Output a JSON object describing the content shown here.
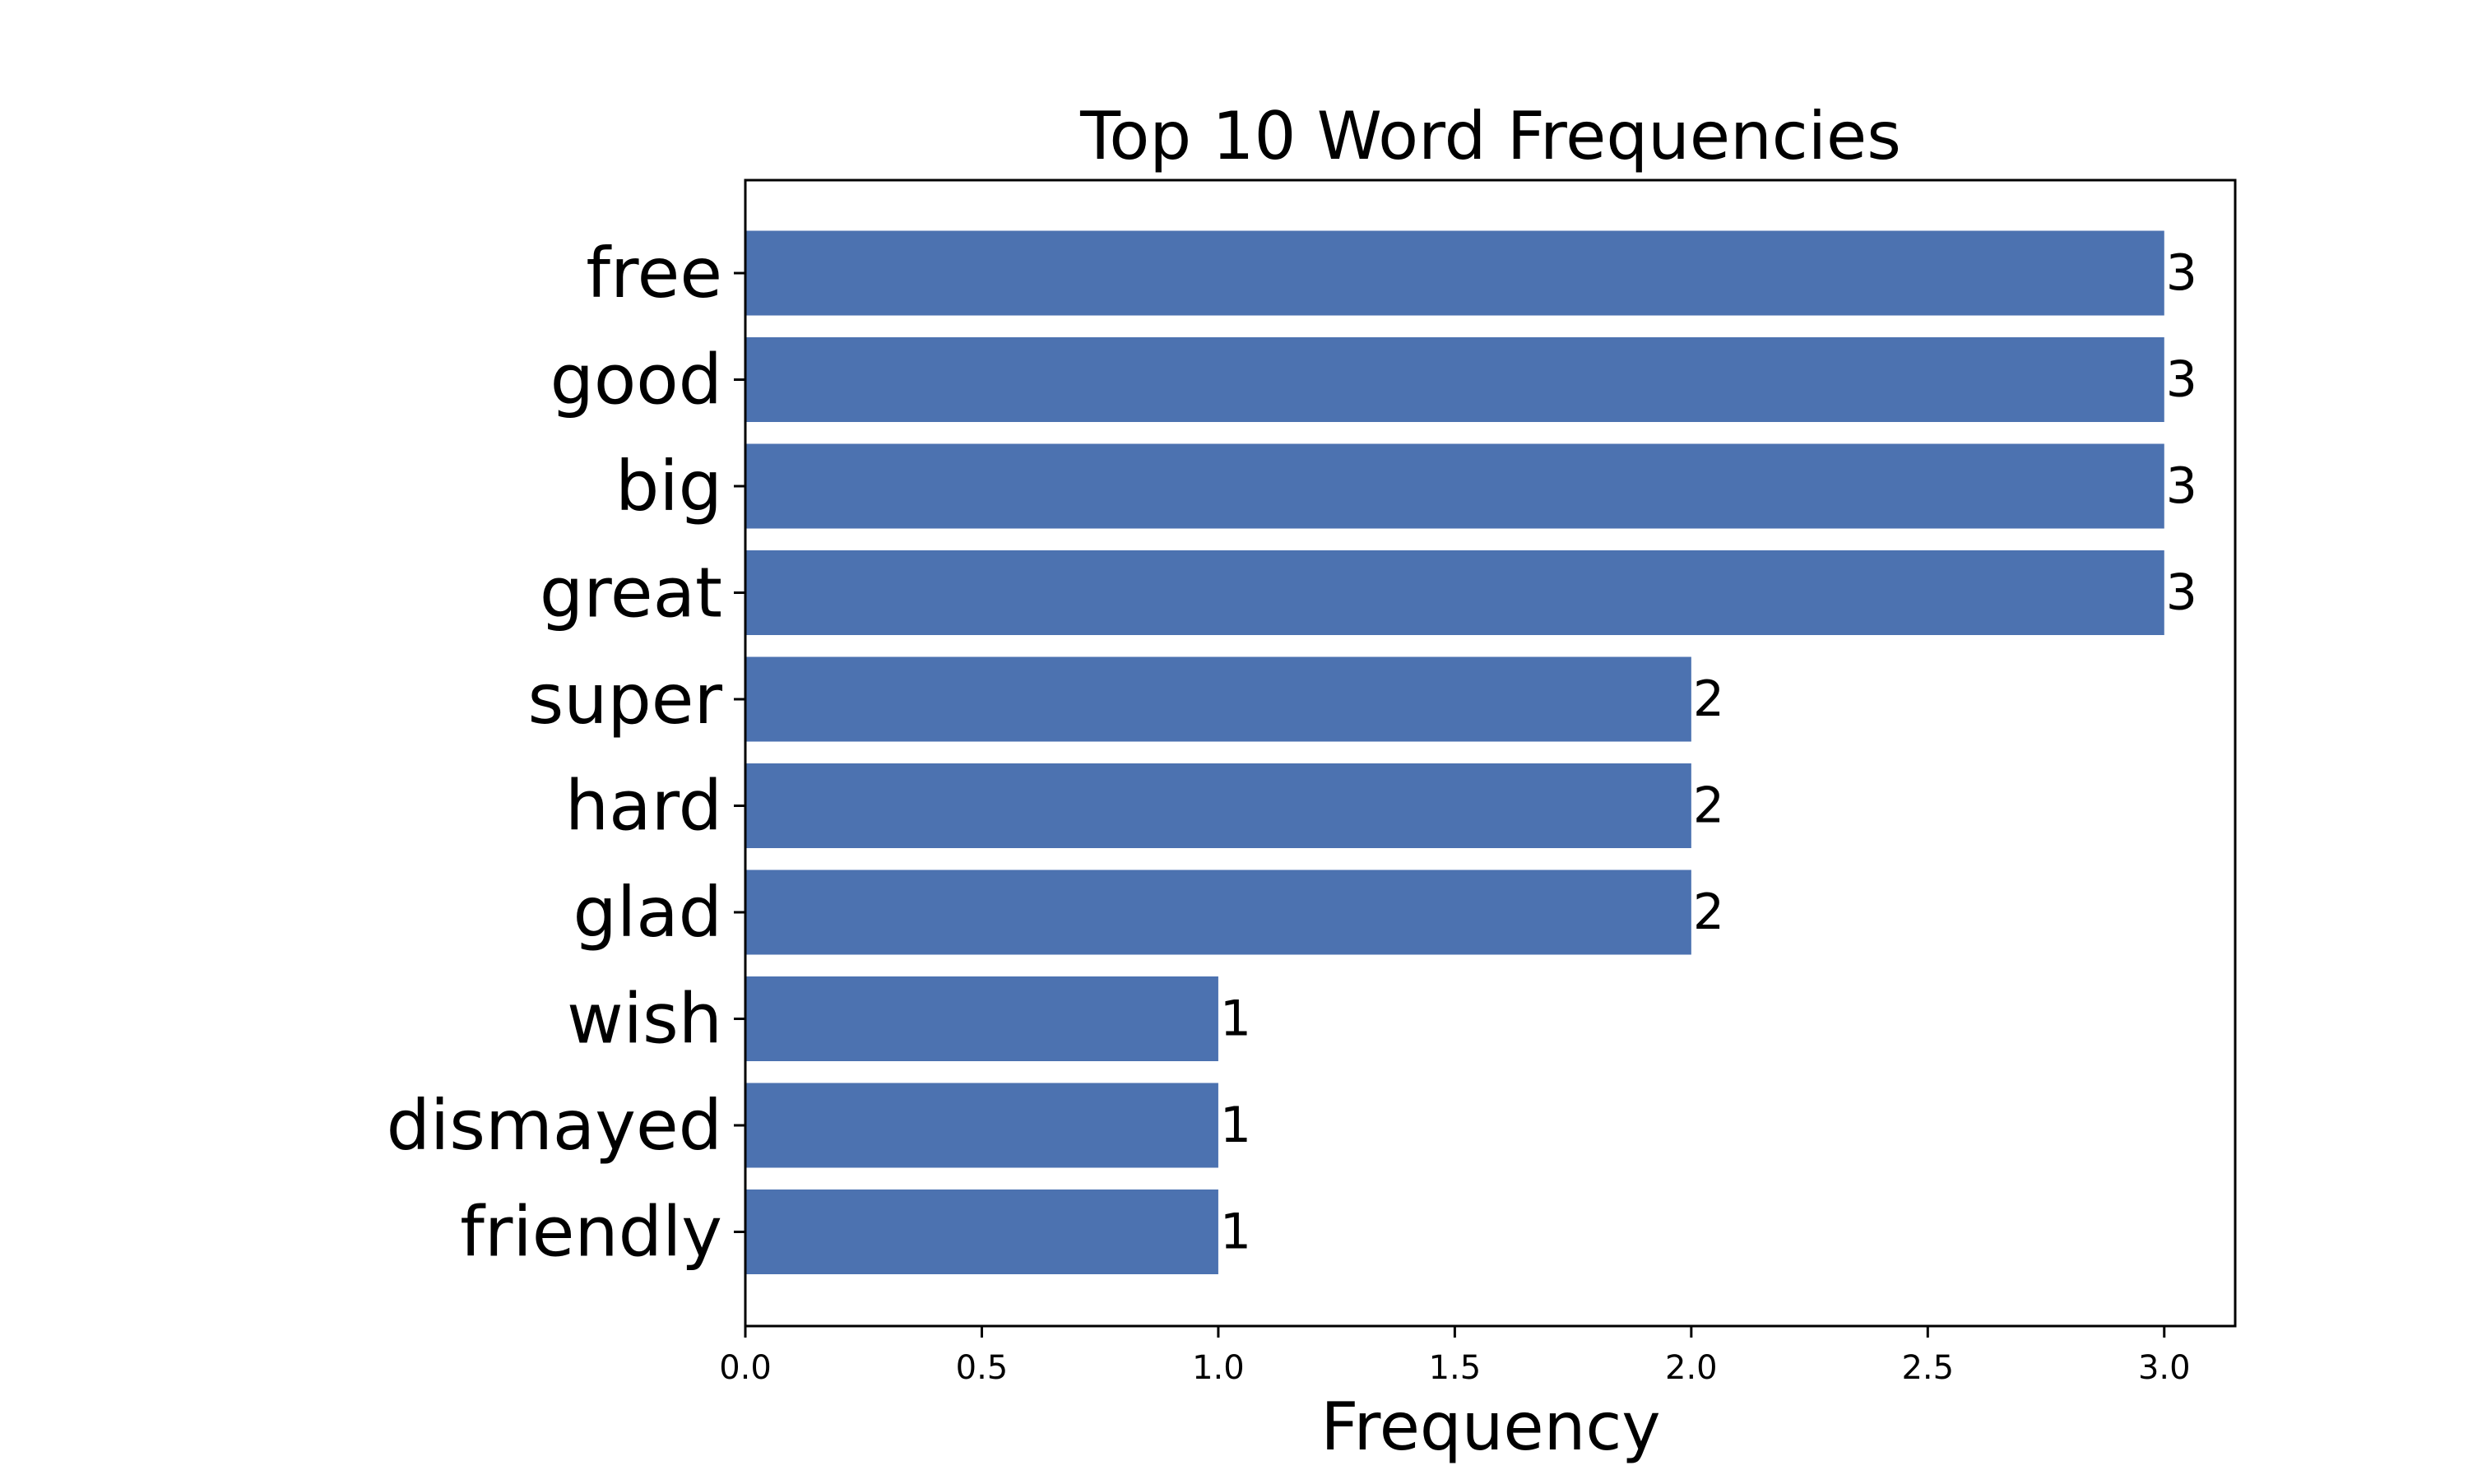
{
  "chart_data": {
    "type": "bar",
    "orientation": "horizontal",
    "title": "Top 10 Word Frequencies",
    "xlabel": "Frequency",
    "ylabel": "",
    "categories": [
      "free",
      "good",
      "big",
      "great",
      "super",
      "hard",
      "glad",
      "wish",
      "dismayed",
      "friendly"
    ],
    "values": [
      3,
      3,
      3,
      3,
      2,
      2,
      2,
      1,
      1,
      1
    ],
    "data_labels": [
      "3",
      "3",
      "3",
      "3",
      "2",
      "2",
      "2",
      "1",
      "1",
      "1"
    ],
    "xlim": [
      0,
      3.15
    ],
    "xticks": [
      0.0,
      0.5,
      1.0,
      1.5,
      2.0,
      2.5,
      3.0
    ],
    "xtick_labels": [
      "0.0",
      "0.5",
      "1.0",
      "1.5",
      "2.0",
      "2.5",
      "3.0"
    ],
    "bar_color": "#4c72b0",
    "grid": false,
    "legend": "none"
  }
}
